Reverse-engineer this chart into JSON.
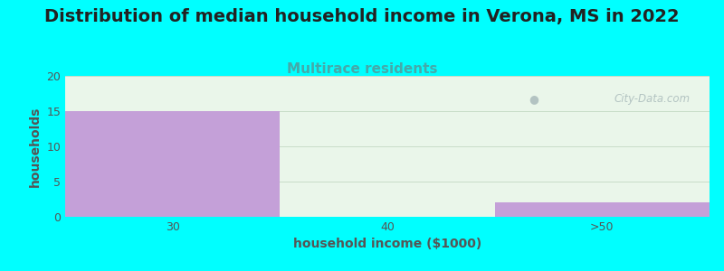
{
  "title": "Distribution of median household income in Verona, MS in 2022",
  "subtitle": "Multirace residents",
  "xlabel": "household income ($1000)",
  "ylabel": "households",
  "categories": [
    "30",
    "40",
    ">50"
  ],
  "values": [
    15,
    0,
    2
  ],
  "bar_color": "#c4a0d8",
  "background_color": "#00ffff",
  "plot_bg_color": "#eaf6ea",
  "ylim": [
    0,
    20
  ],
  "yticks": [
    0,
    5,
    10,
    15,
    20
  ],
  "title_fontsize": 14,
  "subtitle_fontsize": 11,
  "subtitle_color": "#44aaaa",
  "label_fontsize": 10,
  "tick_fontsize": 9,
  "title_color": "#222222",
  "axis_color": "#555555",
  "grid_color": "#c8ddc8",
  "watermark_text": "City-Data.com",
  "watermark_color": "#aabbbb"
}
